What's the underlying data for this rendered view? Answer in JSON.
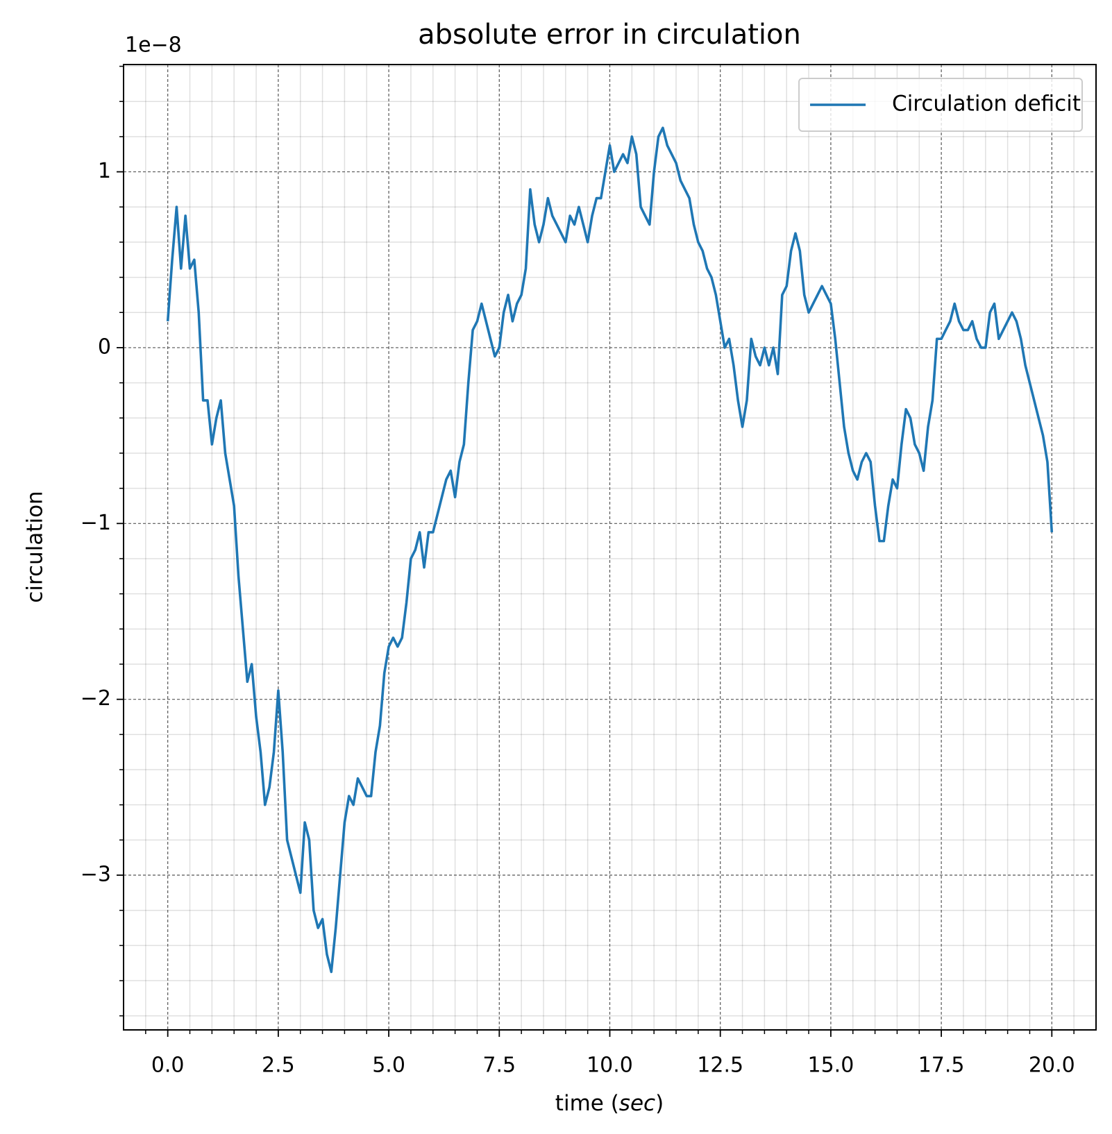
{
  "chart_data": {
    "type": "line",
    "title": "absolute error in circulation",
    "xlabel": [
      "time (",
      "sec",
      ")"
    ],
    "ylabel": "circulation",
    "y_offset_label": "1e−8",
    "legend": "upper right",
    "grid": true,
    "minor_grid": true,
    "xlim": [
      -1.0,
      21.0
    ],
    "ylim": [
      -3.88,
      1.61
    ],
    "xticks": [
      {
        "value": 0,
        "label": "0.0"
      },
      2.5,
      {
        "value": 5,
        "label": "5.0"
      },
      7.5,
      {
        "value": 10,
        "label": "10.0"
      },
      12.5,
      {
        "value": 15,
        "label": "15.0"
      },
      17.5,
      {
        "value": 20,
        "label": "20.0"
      }
    ],
    "yticks": [
      {
        "value": -3,
        "label": "−3"
      },
      {
        "value": -2,
        "label": "−2"
      },
      {
        "value": -1,
        "label": "−1"
      },
      0,
      1
    ],
    "xminorticks": [
      -0.5,
      0.5,
      1.0,
      1.5,
      2.0,
      3.0,
      3.5,
      4.0,
      4.5,
      5.5,
      6.0,
      6.5,
      7.0,
      8.0,
      8.5,
      9.0,
      9.5,
      10.5,
      11.0,
      11.5,
      12.0,
      13.0,
      13.5,
      14.0,
      14.5,
      15.5,
      16.0,
      16.5,
      17.0,
      18.0,
      18.5,
      19.0,
      19.5,
      20.5
    ],
    "yminorticks": [
      -3.8,
      -3.6,
      -3.4,
      -3.2,
      -2.8,
      -2.6,
      -2.4,
      -2.2,
      -1.8,
      -1.6,
      -1.4,
      -1.2,
      -0.8,
      -0.6,
      -0.4,
      -0.2,
      0.2,
      0.4,
      0.6,
      0.8,
      1.2,
      1.4,
      1.6
    ],
    "x": [
      0.0,
      0.1,
      0.2,
      0.3,
      0.4,
      0.5,
      0.6,
      0.7,
      0.8,
      0.9,
      1.0,
      1.1,
      1.2,
      1.3,
      1.4,
      1.5,
      1.6,
      1.7,
      1.8,
      1.9,
      2.0,
      2.1,
      2.2,
      2.3,
      2.4,
      2.5,
      2.6,
      2.7,
      2.8,
      2.9,
      3.0,
      3.1,
      3.2,
      3.3,
      3.4,
      3.5,
      3.6,
      3.7,
      3.8,
      3.9,
      4.0,
      4.1,
      4.2,
      4.3,
      4.4,
      4.5,
      4.6,
      4.7,
      4.8,
      4.9,
      5.0,
      5.1,
      5.2,
      5.3,
      5.4,
      5.5,
      5.6,
      5.7,
      5.8,
      5.9,
      6.0,
      6.1,
      6.2,
      6.3,
      6.4,
      6.5,
      6.6,
      6.7,
      6.8,
      6.9,
      7.0,
      7.1,
      7.2,
      7.3,
      7.4,
      7.5,
      7.6,
      7.7,
      7.8,
      7.9,
      8.0,
      8.1,
      8.2,
      8.3,
      8.4,
      8.5,
      8.6,
      8.7,
      8.8,
      8.9,
      9.0,
      9.1,
      9.2,
      9.3,
      9.4,
      9.5,
      9.6,
      9.7,
      9.8,
      9.9,
      10.0,
      10.1,
      10.2,
      10.3,
      10.4,
      10.5,
      10.6,
      10.7,
      10.8,
      10.9,
      11.0,
      11.1,
      11.2,
      11.3,
      11.4,
      11.5,
      11.6,
      11.7,
      11.8,
      11.9,
      12.0,
      12.1,
      12.2,
      12.3,
      12.4,
      12.5,
      12.6,
      12.7,
      12.8,
      12.9,
      13.0,
      13.1,
      13.2,
      13.3,
      13.4,
      13.5,
      13.6,
      13.7,
      13.8,
      13.9,
      14.0,
      14.1,
      14.2,
      14.3,
      14.4,
      14.5,
      14.6,
      14.7,
      14.8,
      14.9,
      15.0,
      15.1,
      15.2,
      15.3,
      15.4,
      15.5,
      15.6,
      15.7,
      15.8,
      15.9,
      16.0,
      16.1,
      16.2,
      16.3,
      16.4,
      16.5,
      16.6,
      16.7,
      16.8,
      16.9,
      17.0,
      17.1,
      17.2,
      17.3,
      17.4,
      17.5,
      17.6,
      17.7,
      17.8,
      17.9,
      18.0,
      18.1,
      18.2,
      18.3,
      18.4,
      18.5,
      18.6,
      18.7,
      18.8,
      18.9,
      19.0,
      19.1,
      19.2,
      19.3,
      19.4,
      19.5,
      19.6,
      19.7,
      19.8,
      19.9,
      20.0
    ],
    "series": [
      {
        "name": "Circulation deficit",
        "color": "#1f77b4",
        "values": [
          0.15,
          0.5,
          0.8,
          0.45,
          0.75,
          0.45,
          0.5,
          0.2,
          -0.3,
          -0.3,
          -0.55,
          -0.4,
          -0.3,
          -0.6,
          -0.75,
          -0.9,
          -1.3,
          -1.6,
          -1.9,
          -1.8,
          -2.1,
          -2.3,
          -2.6,
          -2.5,
          -2.3,
          -1.95,
          -2.3,
          -2.8,
          -2.9,
          -3.0,
          -3.1,
          -2.7,
          -2.8,
          -3.2,
          -3.3,
          -3.25,
          -3.45,
          -3.55,
          -3.3,
          -3.0,
          -2.7,
          -2.55,
          -2.6,
          -2.45,
          -2.5,
          -2.55,
          -2.55,
          -2.3,
          -2.15,
          -1.85,
          -1.7,
          -1.65,
          -1.7,
          -1.65,
          -1.45,
          -1.2,
          -1.15,
          -1.05,
          -1.25,
          -1.05,
          -1.05,
          -0.95,
          -0.85,
          -0.75,
          -0.7,
          -0.85,
          -0.65,
          -0.55,
          -0.2,
          0.1,
          0.15,
          0.25,
          0.15,
          0.05,
          -0.05,
          0.0,
          0.2,
          0.3,
          0.15,
          0.25,
          0.3,
          0.45,
          0.9,
          0.7,
          0.6,
          0.7,
          0.85,
          0.75,
          0.7,
          0.65,
          0.6,
          0.75,
          0.7,
          0.8,
          0.7,
          0.6,
          0.75,
          0.85,
          0.85,
          1.0,
          1.15,
          1.0,
          1.05,
          1.1,
          1.05,
          1.2,
          1.1,
          0.8,
          0.75,
          0.7,
          1.0,
          1.2,
          1.25,
          1.15,
          1.1,
          1.05,
          0.95,
          0.9,
          0.85,
          0.7,
          0.6,
          0.55,
          0.45,
          0.4,
          0.3,
          0.15,
          0.0,
          0.05,
          -0.1,
          -0.3,
          -0.45,
          -0.3,
          0.05,
          -0.05,
          -0.1,
          0.0,
          -0.1,
          0.0,
          -0.15,
          0.3,
          0.35,
          0.55,
          0.65,
          0.55,
          0.3,
          0.2,
          0.25,
          0.3,
          0.35,
          0.3,
          0.25,
          0.05,
          -0.2,
          -0.45,
          -0.6,
          -0.7,
          -0.75,
          -0.65,
          -0.6,
          -0.65,
          -0.9,
          -1.1,
          -1.1,
          -0.9,
          -0.75,
          -0.8,
          -0.55,
          -0.35,
          -0.4,
          -0.55,
          -0.6,
          -0.7,
          -0.45,
          -0.3,
          0.05,
          0.05,
          0.1,
          0.15,
          0.25,
          0.15,
          0.1,
          0.1,
          0.15,
          0.05,
          0.0,
          0.0,
          0.2,
          0.25,
          0.05,
          0.1,
          0.15,
          0.2,
          0.15,
          0.05,
          -0.1,
          -0.2,
          -0.3,
          -0.4,
          -0.5,
          -0.65,
          -1.05
        ]
      }
    ]
  }
}
